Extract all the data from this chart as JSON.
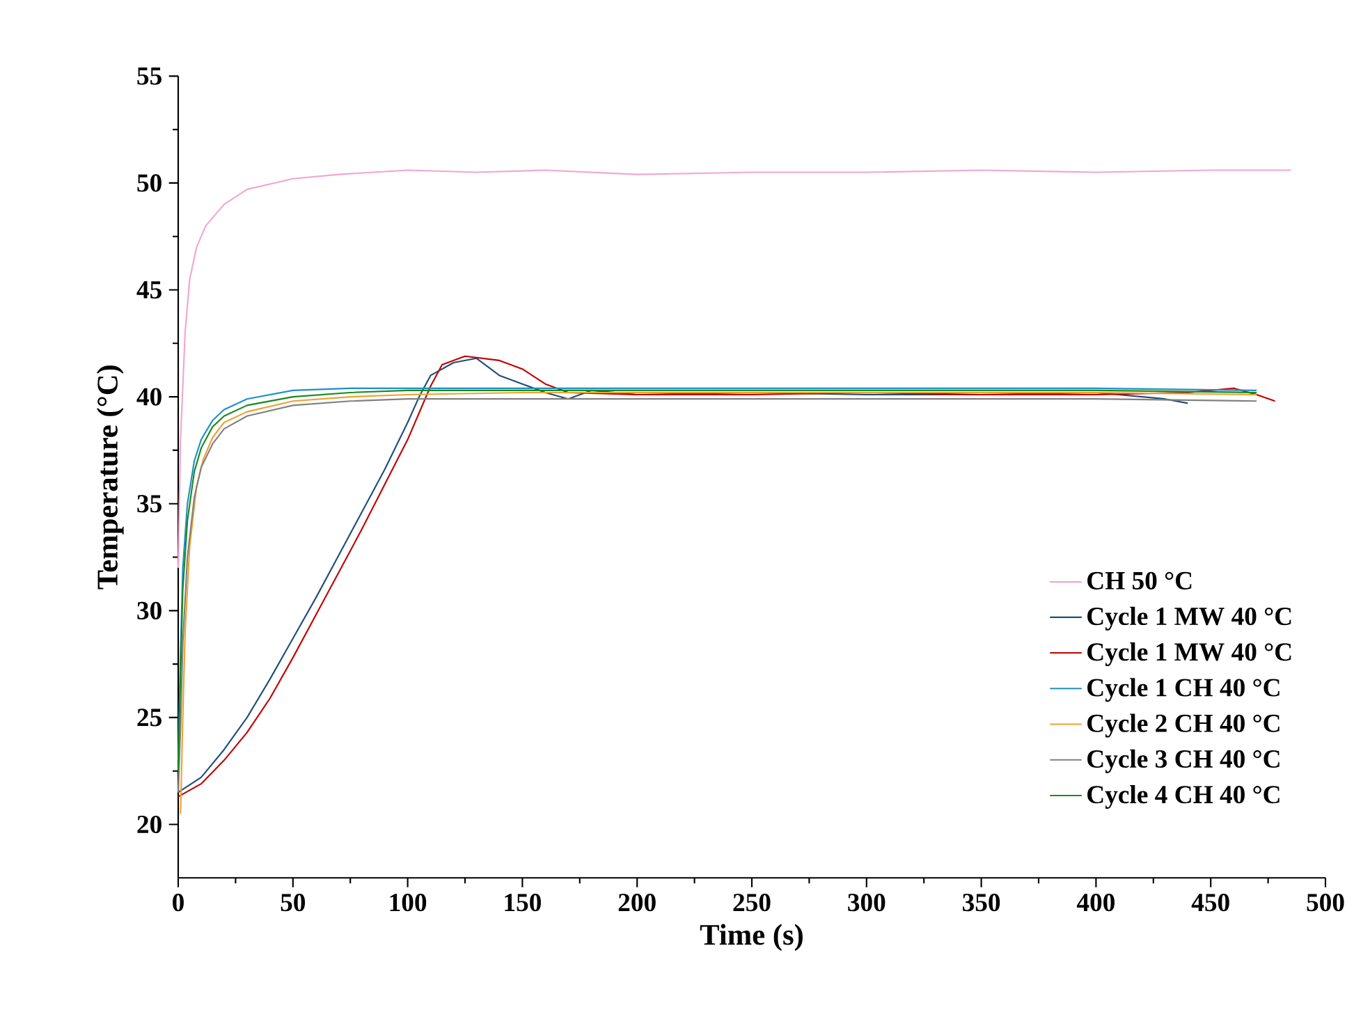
{
  "chart_data": {
    "type": "line",
    "xlabel": "Time (s)",
    "ylabel": "Temperature (°C)",
    "xlim": [
      0,
      500
    ],
    "ylim": [
      17.5,
      55
    ],
    "xticks": [
      0,
      50,
      100,
      150,
      200,
      250,
      300,
      350,
      400,
      450,
      500
    ],
    "yticks": [
      20,
      25,
      30,
      35,
      40,
      45,
      50,
      55
    ],
    "legend": "right",
    "grid": false,
    "marker": "none",
    "line_style": "solid",
    "series": [
      {
        "name": "CH 50 °C",
        "color": "#f2a6cf",
        "x": [
          0,
          1,
          3,
          5,
          8,
          12,
          20,
          30,
          50,
          70,
          100,
          130,
          160,
          200,
          250,
          300,
          350,
          400,
          450,
          485
        ],
        "values": [
          32,
          38,
          43,
          45.5,
          47,
          48,
          49,
          49.7,
          50.2,
          50.4,
          50.6,
          50.5,
          50.6,
          50.4,
          50.5,
          50.5,
          50.6,
          50.5,
          50.6,
          50.6
        ]
      },
      {
        "name": "Cycle 1 MW 40 °C",
        "color": "#1f4e79",
        "x": [
          0,
          10,
          20,
          30,
          40,
          50,
          60,
          70,
          80,
          90,
          100,
          105,
          110,
          120,
          130,
          140,
          150,
          160,
          170,
          180,
          200,
          250,
          300,
          350,
          400,
          430,
          440
        ],
        "values": [
          21.5,
          22.2,
          23.5,
          25,
          26.8,
          28.7,
          30.6,
          32.6,
          34.6,
          36.6,
          38.8,
          40,
          41,
          41.6,
          41.8,
          41,
          40.6,
          40.2,
          39.9,
          40.3,
          40.1,
          40.2,
          40.1,
          40.1,
          40.2,
          39.9,
          39.7
        ]
      },
      {
        "name": "Cycle 1 MW 40 °C",
        "color": "#c00000",
        "x": [
          0,
          10,
          20,
          30,
          40,
          50,
          60,
          70,
          80,
          90,
          100,
          110,
          115,
          125,
          140,
          150,
          160,
          170,
          200,
          250,
          300,
          350,
          400,
          440,
          460,
          470,
          478
        ],
        "values": [
          21.3,
          21.9,
          23,
          24.3,
          25.9,
          27.8,
          29.8,
          31.8,
          33.8,
          35.9,
          38,
          40.5,
          41.5,
          41.9,
          41.7,
          41.3,
          40.6,
          40.2,
          40.1,
          40.1,
          40.2,
          40.1,
          40.1,
          40.2,
          40.4,
          40.1,
          39.8
        ]
      },
      {
        "name": "Cycle 1 CH 40 °C",
        "color": "#1f8fc9",
        "x": [
          0,
          1,
          2,
          4,
          7,
          10,
          15,
          20,
          30,
          50,
          75,
          100,
          150,
          200,
          300,
          400,
          470
        ],
        "values": [
          23,
          28,
          32,
          35,
          37,
          38,
          38.9,
          39.4,
          39.9,
          40.3,
          40.4,
          40.4,
          40.4,
          40.4,
          40.4,
          40.4,
          40.3
        ]
      },
      {
        "name": "Cycle 2 CH 40 °C",
        "color": "#f0a030",
        "x": [
          1,
          2,
          3,
          5,
          8,
          11,
          15,
          20,
          30,
          50,
          75,
          100,
          150,
          200,
          300,
          400,
          470
        ],
        "values": [
          20.5,
          25,
          29,
          33,
          35.8,
          37.1,
          38.1,
          38.8,
          39.3,
          39.8,
          40,
          40.1,
          40.2,
          40.2,
          40.2,
          40.2,
          40.1
        ]
      },
      {
        "name": "Cycle 3 CH 40 °C",
        "color": "#808080",
        "x": [
          0,
          1,
          2,
          4,
          7,
          10,
          15,
          20,
          30,
          50,
          75,
          100,
          150,
          200,
          300,
          400,
          470
        ],
        "values": [
          21.5,
          24.5,
          28.5,
          32.5,
          35.3,
          36.7,
          37.8,
          38.5,
          39.1,
          39.6,
          39.8,
          39.9,
          39.9,
          39.9,
          39.9,
          39.9,
          39.8
        ]
      },
      {
        "name": "Cycle 4 CH 40 °C",
        "color": "#1a8a1a",
        "x": [
          0,
          1,
          2,
          4,
          7,
          10,
          15,
          20,
          30,
          50,
          75,
          100,
          150,
          200,
          300,
          400,
          470
        ],
        "values": [
          22.5,
          27,
          31,
          34.2,
          36.5,
          37.6,
          38.6,
          39.1,
          39.6,
          40,
          40.2,
          40.3,
          40.3,
          40.3,
          40.3,
          40.3,
          40.2
        ]
      }
    ]
  }
}
